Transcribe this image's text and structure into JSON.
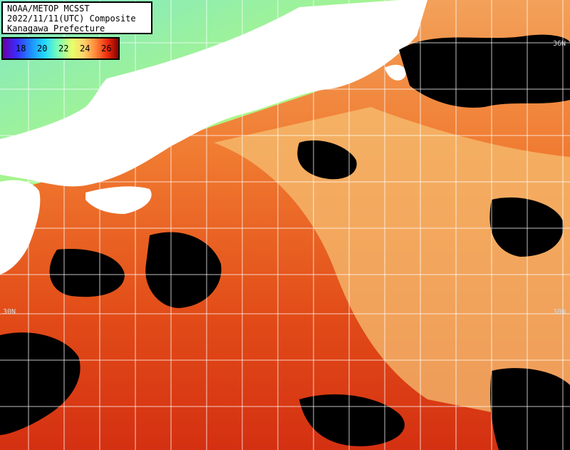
{
  "header": {
    "line1": "NOAA/METOP MCSST",
    "line2": "2022/11/11(UTC) Composite",
    "line3": "Kanagawa Prefecture"
  },
  "colorbar": {
    "ticks": [
      "18",
      "20",
      "22",
      "24",
      "26"
    ]
  },
  "latitude_labels": {
    "top_right": "36N",
    "mid_left": "30N",
    "mid_right": "30N"
  },
  "colors": {
    "land": "#ffffff",
    "cloud": "#000000",
    "warm_sea": "#f06a20",
    "hot_sea": "#d83010",
    "cool_sea": "#9ff58a",
    "grid": "#ffffff"
  }
}
